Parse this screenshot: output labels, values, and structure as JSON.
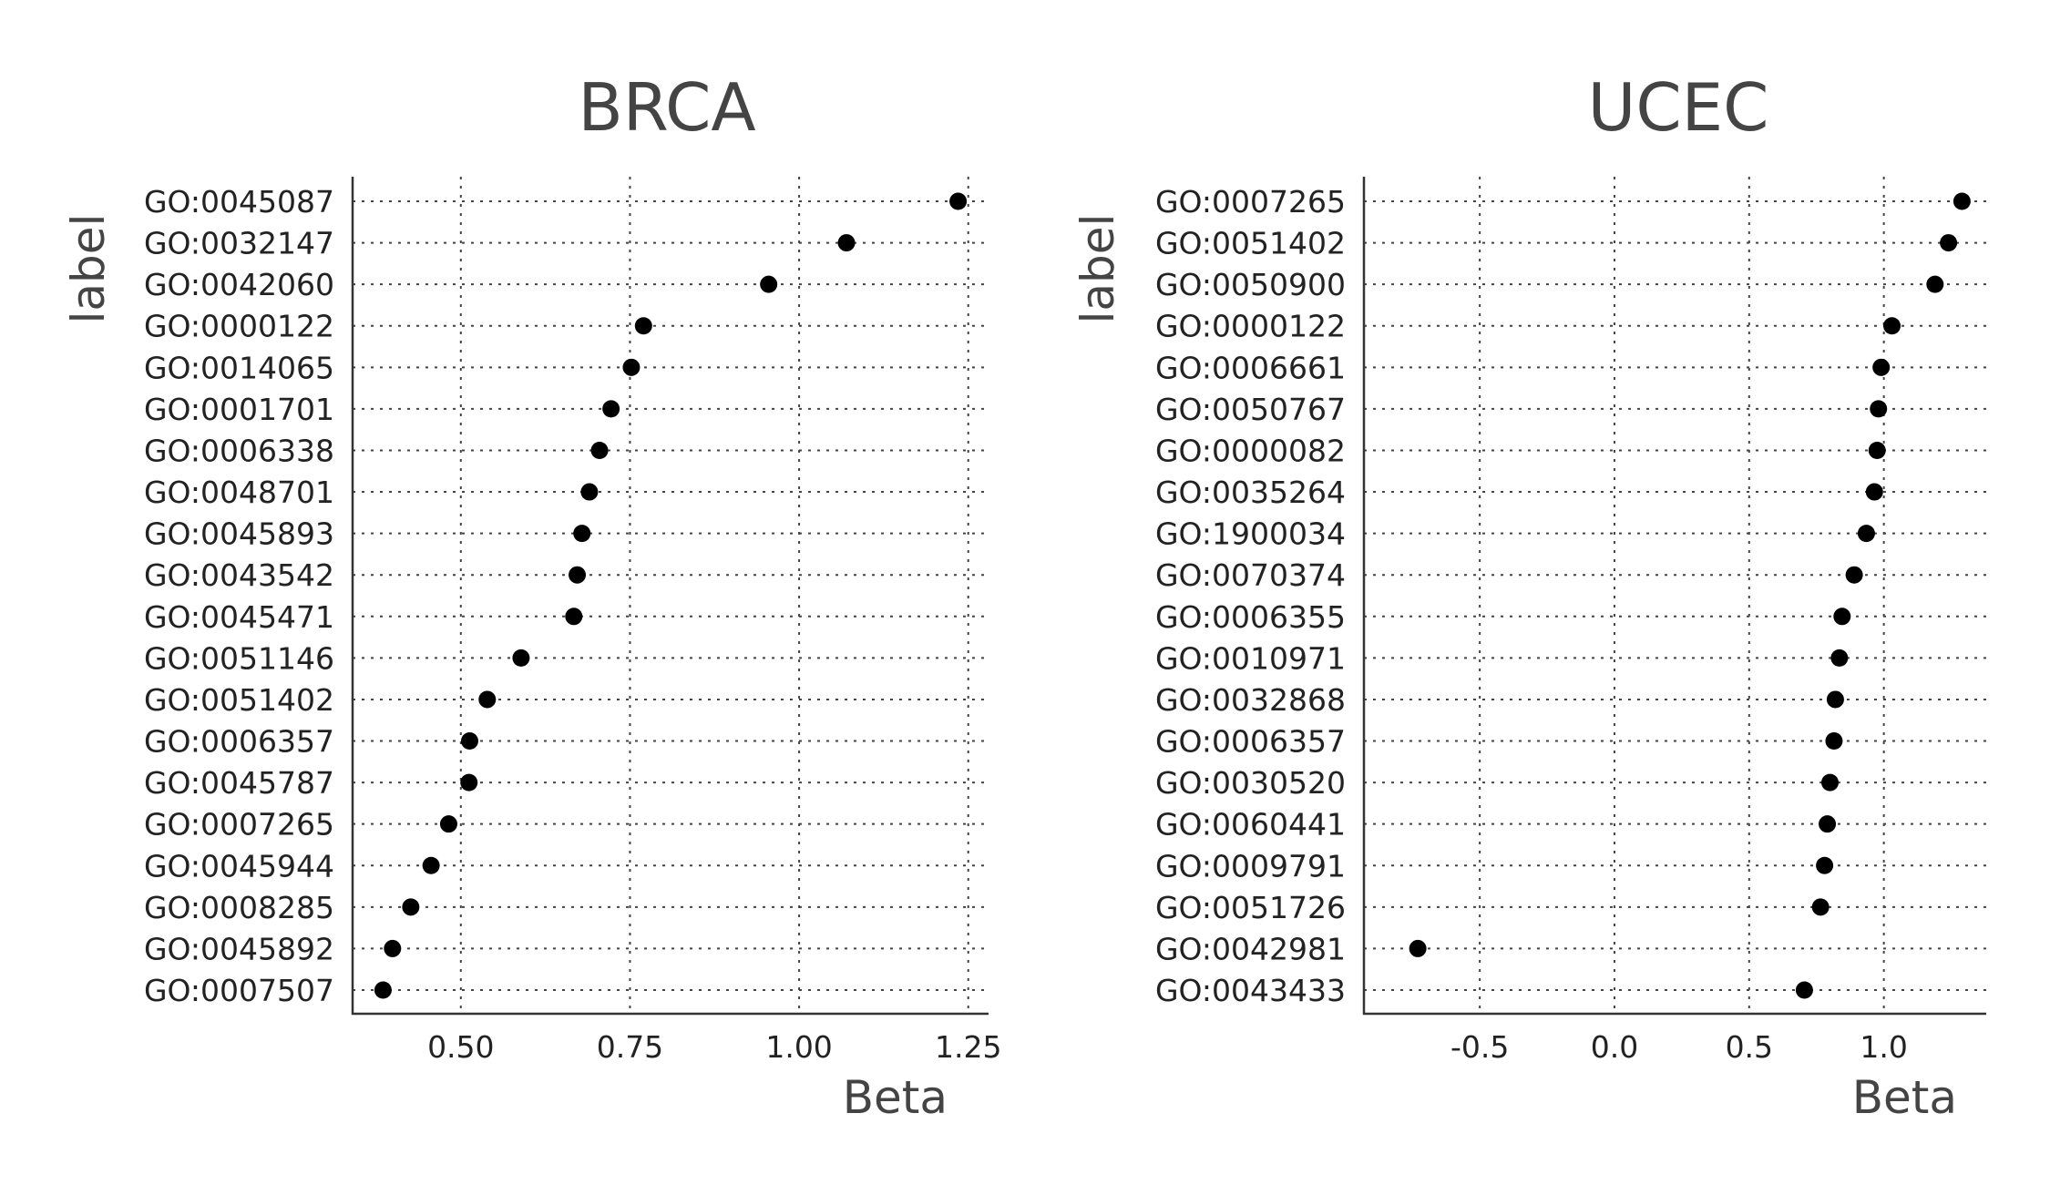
{
  "chart_data": [
    {
      "type": "scatter",
      "title": "BRCA",
      "xlabel": "Beta",
      "ylabel": "label",
      "xlim": [
        0.34,
        1.28
      ],
      "xticks": [
        0.5,
        0.75,
        1.0,
        1.25
      ],
      "xtick_labels": [
        "0.50",
        "0.75",
        "1.00",
        "1.25"
      ],
      "grid": true,
      "categories": [
        "GO:0045087",
        "GO:0032147",
        "GO:0042060",
        "GO:0000122",
        "GO:0014065",
        "GO:0001701",
        "GO:0006338",
        "GO:0048701",
        "GO:0045893",
        "GO:0043542",
        "GO:0045471",
        "GO:0051146",
        "GO:0051402",
        "GO:0006357",
        "GO:0045787",
        "GO:0007265",
        "GO:0045944",
        "GO:0008285",
        "GO:0045892",
        "GO:0007507"
      ],
      "values": [
        1.235,
        1.07,
        0.955,
        0.77,
        0.752,
        0.722,
        0.705,
        0.69,
        0.679,
        0.672,
        0.667,
        0.589,
        0.539,
        0.513,
        0.512,
        0.482,
        0.456,
        0.426,
        0.399,
        0.385
      ]
    },
    {
      "type": "scatter",
      "title": "UCEC",
      "xlabel": "Beta",
      "ylabel": "label",
      "xlim": [
        -0.93,
        1.38
      ],
      "xticks": [
        -0.5,
        0.0,
        0.5,
        1.0
      ],
      "xtick_labels": [
        "-0.5",
        "0.0",
        "0.5",
        "1.0"
      ],
      "grid": true,
      "categories": [
        "GO:0007265",
        "GO:0051402",
        "GO:0050900",
        "GO:0000122",
        "GO:0006661",
        "GO:0050767",
        "GO:0000082",
        "GO:0035264",
        "GO:1900034",
        "GO:0070374",
        "GO:0006355",
        "GO:0010971",
        "GO:0032868",
        "GO:0006357",
        "GO:0030520",
        "GO:0060441",
        "GO:0009791",
        "GO:0051726",
        "GO:0042981",
        "GO:0043433"
      ],
      "values": [
        1.29,
        1.24,
        1.19,
        1.03,
        0.99,
        0.98,
        0.975,
        0.965,
        0.935,
        0.89,
        0.845,
        0.835,
        0.82,
        0.815,
        0.8,
        0.79,
        0.78,
        0.765,
        -0.73,
        0.705
      ]
    }
  ]
}
